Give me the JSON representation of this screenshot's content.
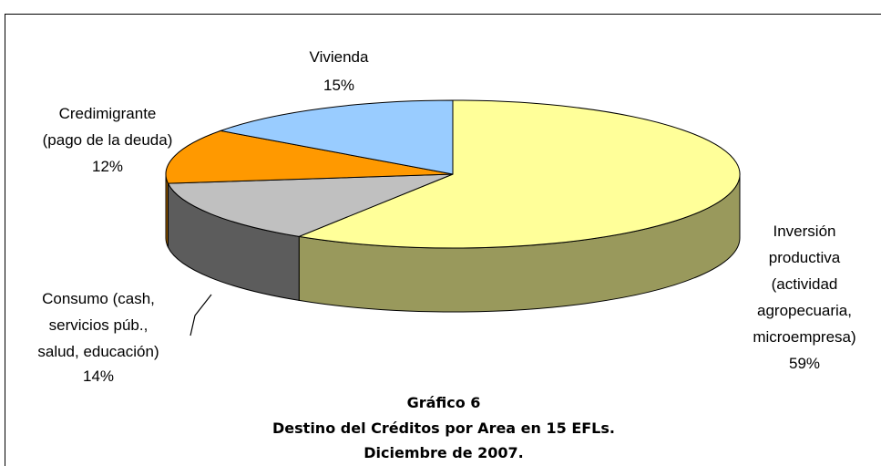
{
  "chart_data": {
    "type": "pie3d",
    "title": "Gráfico 6\nDestino del Créditos por Area en 15 EFLs.\nDiciembre de 2007.",
    "categories": [
      "Inversión\nproductiva\n(actividad\nagropecuaria,\nmicroempresa)",
      "Consumo (cash,\nservicios púb.,\nsalud, educación)",
      "Credimigrante\n(pago de la deuda)",
      "Vivienda"
    ],
    "values": [
      59,
      14,
      12,
      15
    ],
    "value_labels": [
      "59%",
      "14%",
      "12%",
      "15%"
    ],
    "colors": [
      "#ffff99",
      "#c0c0c0",
      "#ff9900",
      "#99ccff"
    ]
  }
}
